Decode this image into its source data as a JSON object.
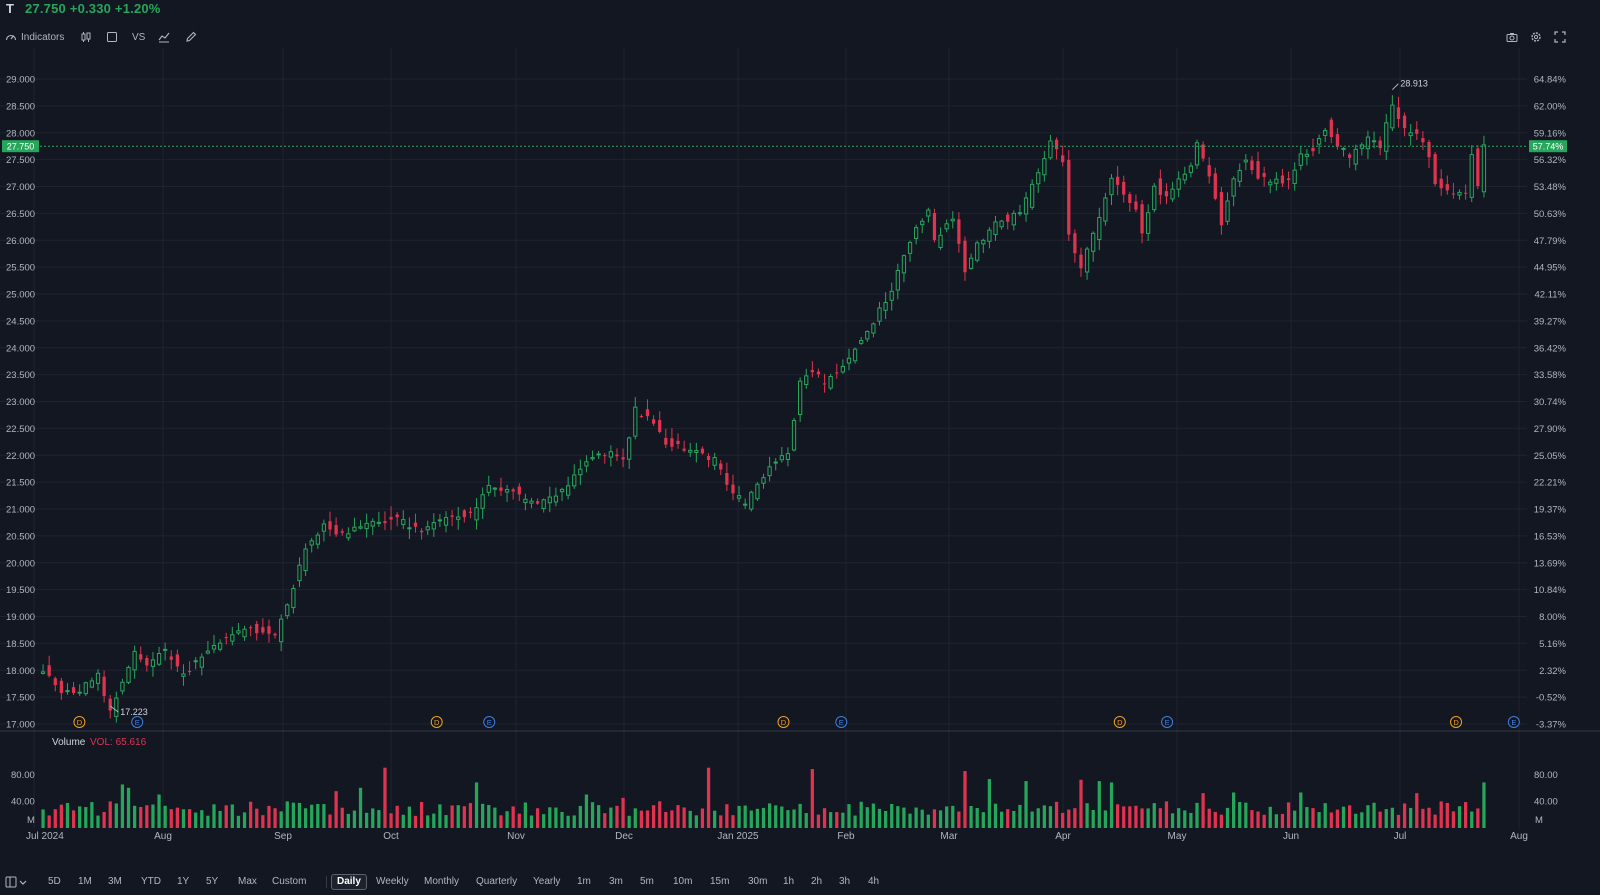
{
  "header": {
    "symbol": "T",
    "price_line": "27.750 +0.330 +1.20%"
  },
  "toolbar": {
    "indicators_label": "Indicators",
    "compare_label": "VS"
  },
  "colors": {
    "up": "#26a65b",
    "down": "#e0334f",
    "background": "#131722",
    "grid": "#1f2330",
    "axis_text": "#b2b5be",
    "dividend_marker": "#f0a020",
    "earnings_marker": "#3d7fe0"
  },
  "chart_data": {
    "type": "candlestick",
    "symbol": "T",
    "y_range": [
      17.0,
      29.0
    ],
    "y_ticks": [
      "29.000",
      "28.500",
      "28.000",
      "27.500",
      "27.000",
      "26.500",
      "26.000",
      "25.500",
      "25.000",
      "24.500",
      "24.000",
      "23.500",
      "23.000",
      "22.500",
      "22.000",
      "21.500",
      "21.000",
      "20.500",
      "20.000",
      "19.500",
      "19.000",
      "18.500",
      "18.000",
      "17.500",
      "17.000"
    ],
    "pct_ticks": [
      "64.84%",
      "62.00%",
      "59.16%",
      "56.32%",
      "53.48%",
      "50.63%",
      "47.79%",
      "44.95%",
      "42.11%",
      "39.27%",
      "36.42%",
      "33.58%",
      "30.74%",
      "27.90%",
      "25.05%",
      "22.21%",
      "19.37%",
      "16.53%",
      "13.69%",
      "10.84%",
      "8.00%",
      "5.16%",
      "2.32%",
      "-0.52%",
      "-3.37%"
    ],
    "x_labels": [
      "Jul 2024",
      "Aug",
      "Sep",
      "Oct",
      "Nov",
      "Dec",
      "Jan 2025",
      "Feb",
      "Mar",
      "Apr",
      "May",
      "Jun",
      "Jul",
      "Aug"
    ],
    "current_price_label": "27.750",
    "current_pct_label": "57.74%",
    "high_label": "28.913",
    "low_label": "17.223",
    "dividend_marker": "D",
    "earnings_marker": "E",
    "anchors": [
      [
        0,
        18.0
      ],
      [
        3,
        17.55
      ],
      [
        6,
        17.65
      ],
      [
        9,
        17.9
      ],
      [
        11,
        17.25
      ],
      [
        15,
        18.3
      ],
      [
        17,
        18.1
      ],
      [
        20,
        18.35
      ],
      [
        23,
        17.9
      ],
      [
        28,
        18.5
      ],
      [
        33,
        18.8
      ],
      [
        38,
        18.65
      ],
      [
        40,
        19.2
      ],
      [
        43,
        20.3
      ],
      [
        46,
        20.7
      ],
      [
        49,
        20.5
      ],
      [
        53,
        20.75
      ],
      [
        58,
        20.8
      ],
      [
        62,
        20.6
      ],
      [
        66,
        20.8
      ],
      [
        70,
        20.9
      ],
      [
        73,
        21.4
      ],
      [
        77,
        21.3
      ],
      [
        81,
        21.1
      ],
      [
        85,
        21.35
      ],
      [
        89,
        21.9
      ],
      [
        93,
        22.05
      ],
      [
        95,
        21.9
      ],
      [
        97,
        22.85
      ],
      [
        100,
        22.6
      ],
      [
        102,
        22.2
      ],
      [
        106,
        22.1
      ],
      [
        110,
        21.9
      ],
      [
        113,
        21.3
      ],
      [
        115,
        21.1
      ],
      [
        120,
        21.9
      ],
      [
        122,
        22.0
      ],
      [
        124,
        23.4
      ],
      [
        126,
        23.6
      ],
      [
        128,
        23.3
      ],
      [
        131,
        23.7
      ],
      [
        135,
        24.3
      ],
      [
        139,
        25.1
      ],
      [
        142,
        26.0
      ],
      [
        145,
        26.6
      ],
      [
        146,
        26.0
      ],
      [
        149,
        26.4
      ],
      [
        151,
        25.4
      ],
      [
        153,
        25.9
      ],
      [
        156,
        26.3
      ],
      [
        160,
        26.5
      ],
      [
        163,
        27.3
      ],
      [
        165,
        27.8
      ],
      [
        167,
        27.5
      ],
      [
        168,
        26.1
      ],
      [
        170,
        25.5
      ],
      [
        173,
        26.4
      ],
      [
        175,
        27.2
      ],
      [
        177,
        26.8
      ],
      [
        179,
        26.6
      ],
      [
        180,
        26.1
      ],
      [
        182,
        27.0
      ],
      [
        184,
        26.8
      ],
      [
        186,
        27.1
      ],
      [
        188,
        27.4
      ],
      [
        189,
        27.8
      ],
      [
        191,
        27.2
      ],
      [
        193,
        26.3
      ],
      [
        195,
        27.2
      ],
      [
        197,
        27.5
      ],
      [
        199,
        27.2
      ],
      [
        201,
        27.1
      ],
      [
        204,
        27.1
      ],
      [
        206,
        27.6
      ],
      [
        208,
        27.7
      ],
      [
        210,
        28.1
      ],
      [
        212,
        27.8
      ],
      [
        214,
        27.5
      ],
      [
        217,
        27.9
      ],
      [
        219,
        27.7
      ],
      [
        221,
        28.55
      ],
      [
        223,
        28.05
      ],
      [
        225,
        27.95
      ],
      [
        227,
        27.6
      ],
      [
        228,
        27.1
      ],
      [
        230,
        26.9
      ],
      [
        233,
        26.85
      ],
      [
        234,
        27.6
      ],
      [
        235,
        26.95
      ],
      [
        236,
        27.75
      ]
    ],
    "volume": {
      "label": "Volume",
      "value_label": "VOL: 65.616",
      "y_range": [
        0,
        100
      ],
      "y_ticks": [
        "80.00",
        "40.00"
      ],
      "unit": "M",
      "spikes": [
        [
          13,
          65
        ],
        [
          14,
          60
        ],
        [
          19,
          50
        ],
        [
          48,
          55
        ],
        [
          52,
          60
        ],
        [
          56,
          90
        ],
        [
          71,
          68
        ],
        [
          89,
          50
        ],
        [
          109,
          90
        ],
        [
          95,
          45
        ],
        [
          126,
          88
        ],
        [
          151,
          85
        ],
        [
          155,
          73
        ],
        [
          161,
          70
        ],
        [
          170,
          72
        ],
        [
          173,
          70
        ],
        [
          175,
          68
        ],
        [
          190,
          52
        ],
        [
          195,
          53
        ],
        [
          206,
          53
        ],
        [
          225,
          52
        ],
        [
          236,
          68
        ]
      ]
    },
    "events": [
      {
        "type": "D",
        "x_index": 7
      },
      {
        "type": "E",
        "x_index": 18
      },
      {
        "type": "D",
        "x_index": 75
      },
      {
        "type": "E",
        "x_index": 85
      },
      {
        "type": "D",
        "x_index": 141
      },
      {
        "type": "E",
        "x_index": 152
      },
      {
        "type": "D",
        "x_index": 205
      },
      {
        "type": "E",
        "x_index": 214
      },
      {
        "type": "D",
        "x_index": 269
      },
      {
        "type": "E",
        "x_index": 280
      }
    ]
  },
  "footer": {
    "ranges": [
      "5D",
      "1M",
      "3M",
      "YTD",
      "1Y",
      "5Y",
      "Max",
      "Custom"
    ],
    "intervals": [
      "Daily",
      "Weekly",
      "Monthly",
      "Quarterly",
      "Yearly",
      "1m",
      "3m",
      "5m",
      "10m",
      "15m",
      "30m",
      "1h",
      "2h",
      "3h",
      "4h"
    ],
    "active_interval": "Daily"
  }
}
